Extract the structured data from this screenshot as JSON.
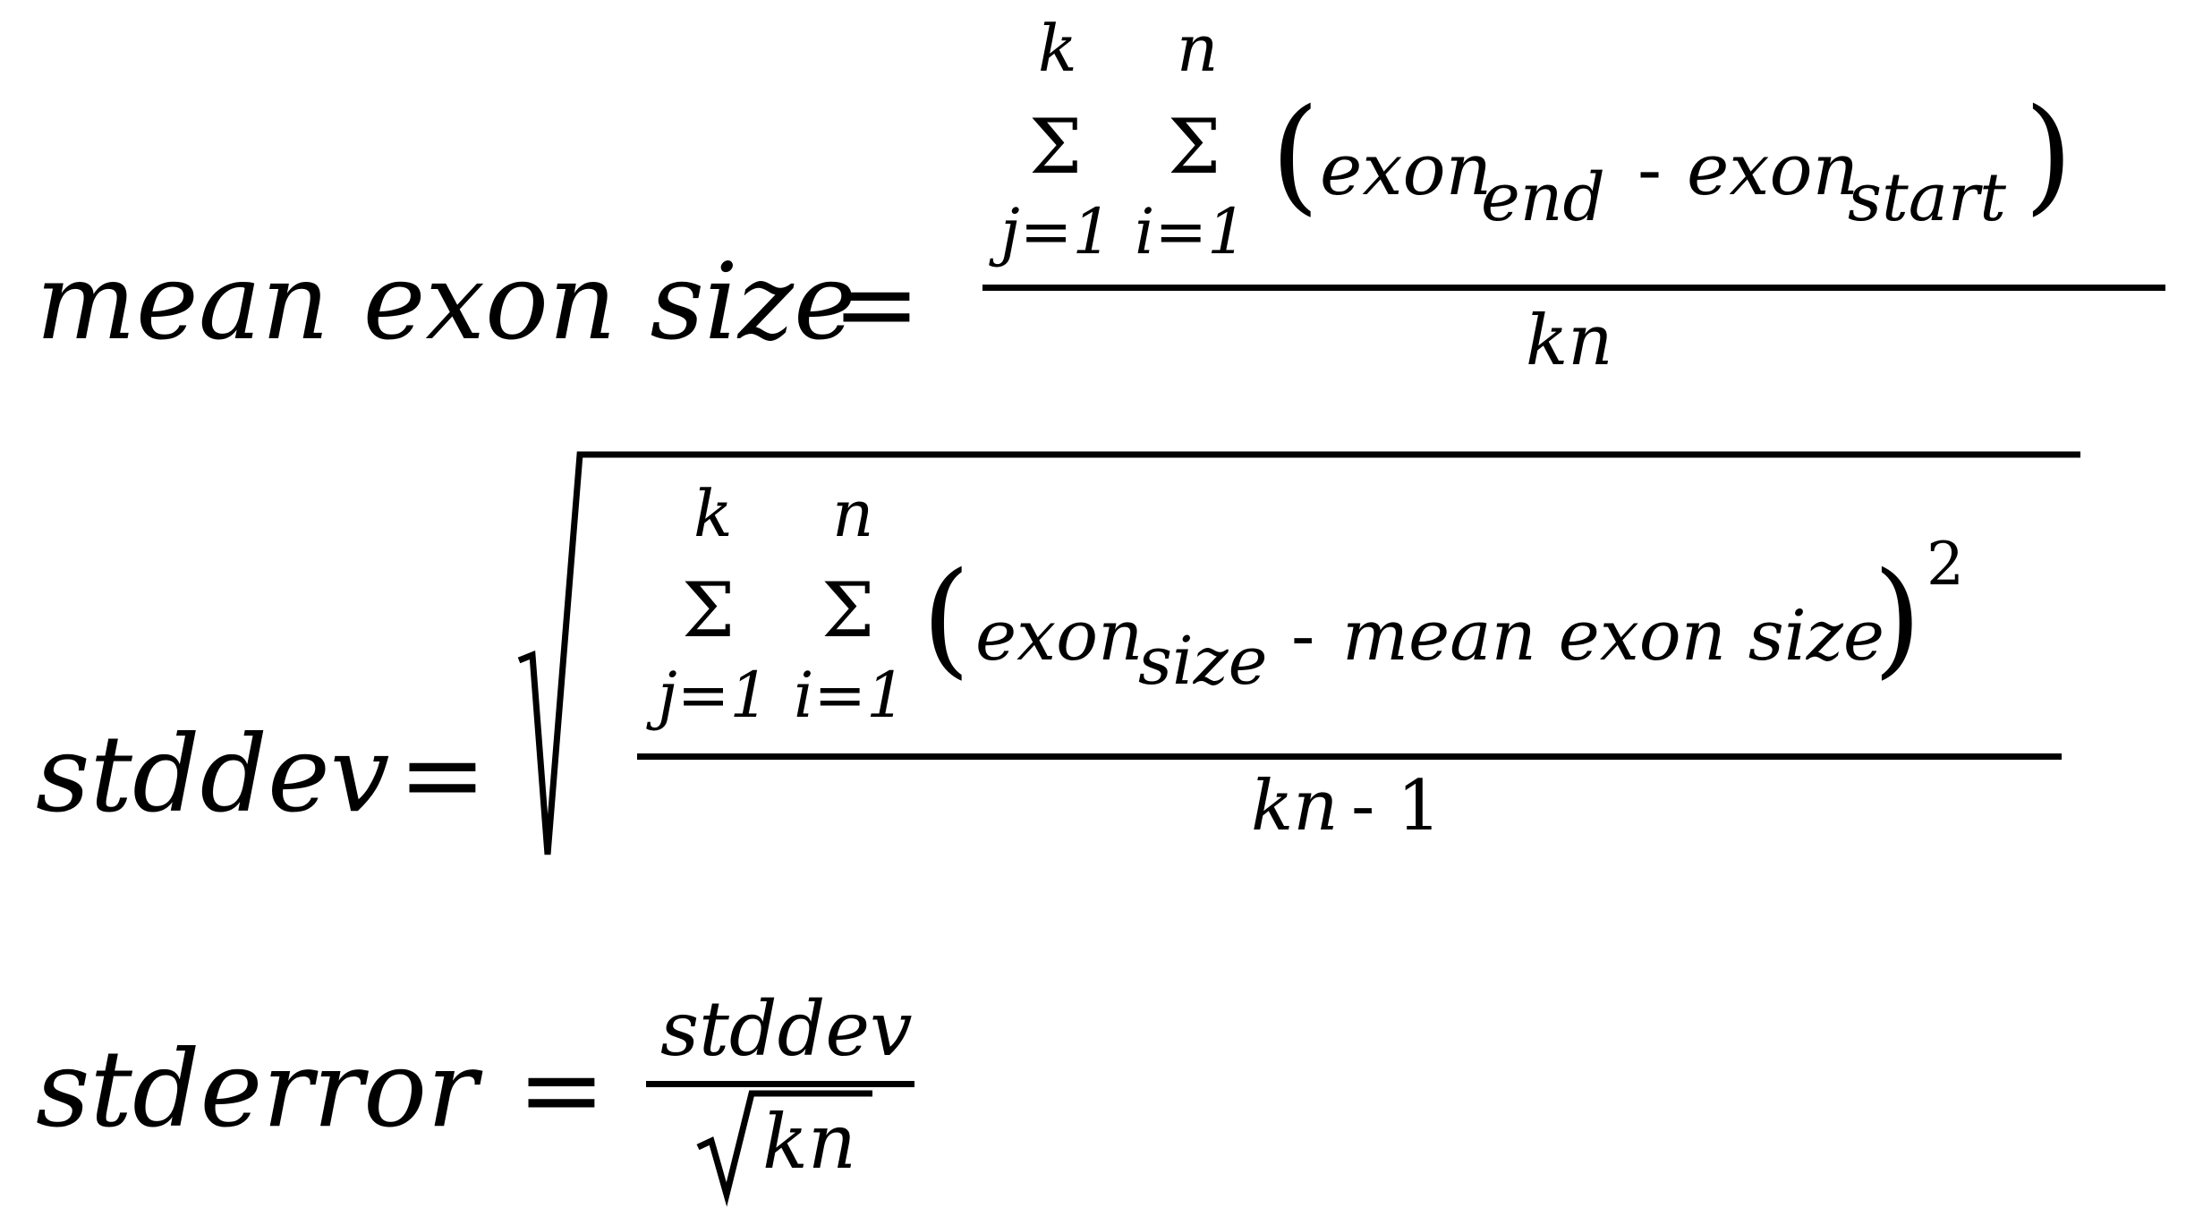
{
  "formula1": {
    "lhs": "mean exon size",
    "eq": "=",
    "outer_upper": "k",
    "inner_upper": "n",
    "sigma": "Σ",
    "outer_lower": "j=1",
    "inner_lower": "i=1",
    "lparen": "(",
    "rparen": ")",
    "term1_base": "exon",
    "term1_sub": "end",
    "minus": "-",
    "term2_base": "exon",
    "term2_sub": "start",
    "denominator": "kn"
  },
  "formula2": {
    "lhs": "stddev",
    "eq": "=",
    "outer_upper": "k",
    "inner_upper": "n",
    "sigma": "Σ",
    "outer_lower": "j=1",
    "inner_lower": "i=1",
    "lparen": "(",
    "rparen": ")",
    "term1_base": "exon",
    "term1_sub": "size",
    "minus": "-",
    "term2": "mean exon size",
    "exponent": "2",
    "den_var": "kn",
    "den_rest": "- 1"
  },
  "formula3": {
    "lhs": "stderror",
    "eq": "=",
    "numerator": "stddev",
    "den_radicand": "kn"
  }
}
